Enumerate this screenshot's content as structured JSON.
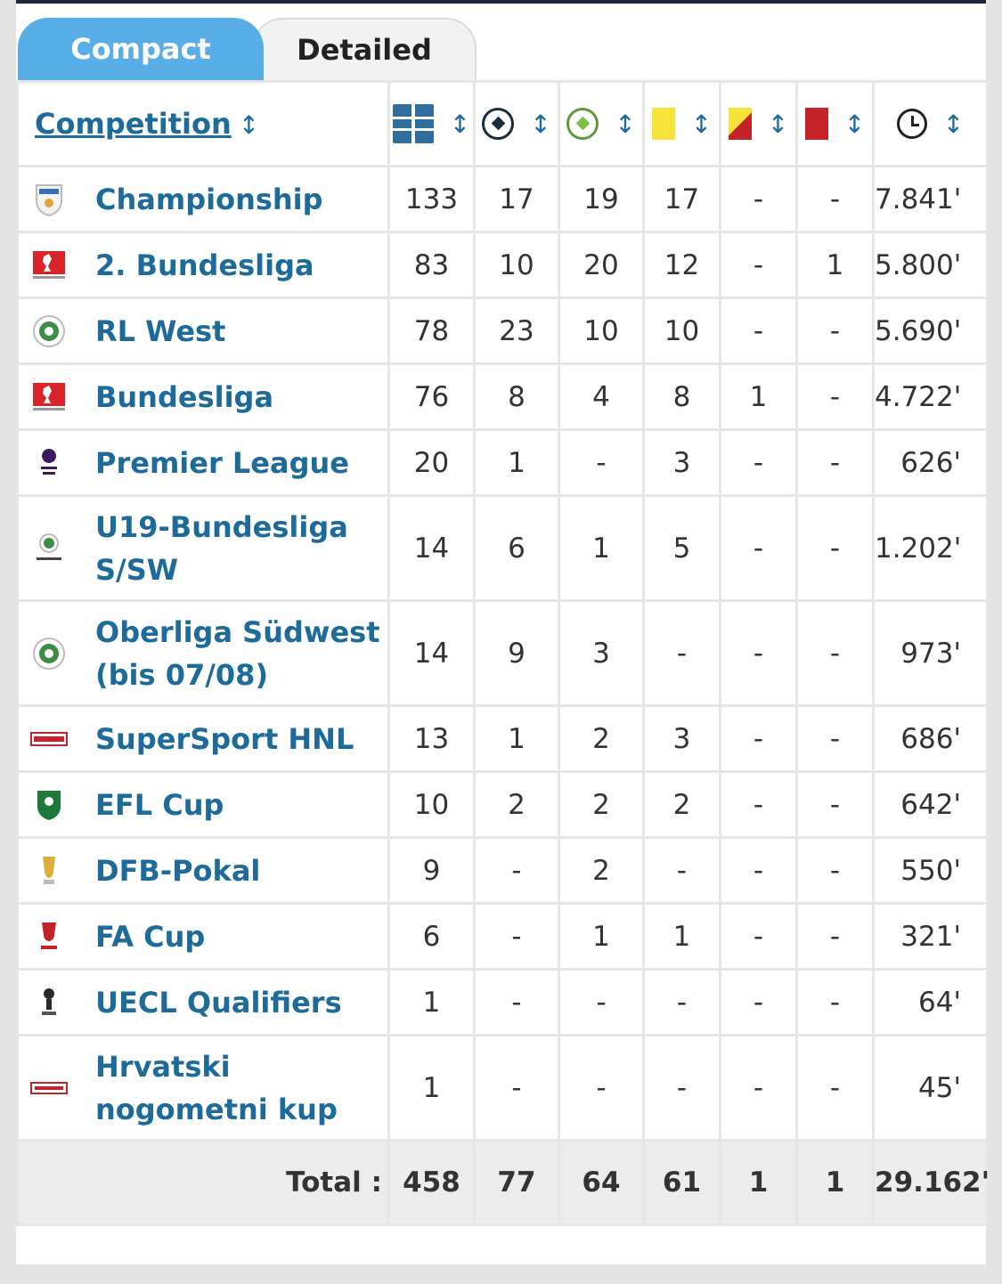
{
  "tabs": {
    "compact": "Compact",
    "detailed": "Detailed"
  },
  "header": {
    "competition": "Competition",
    "icons": [
      "appearances-icon",
      "goals-icon",
      "assists-icon",
      "yellow-card-icon",
      "yellow-red-card-icon",
      "red-card-icon",
      "minutes-clock-icon"
    ]
  },
  "rows": [
    {
      "name": "Championship",
      "logo": "championship-logo",
      "apps": "133",
      "goals": "17",
      "assists": "19",
      "yellow": "17",
      "yellowred": "-",
      "red": "-",
      "minutes": "7.841'"
    },
    {
      "name": "2. Bundesliga",
      "logo": "2-bundesliga-logo",
      "apps": "83",
      "goals": "10",
      "assists": "20",
      "yellow": "12",
      "yellowred": "-",
      "red": "1",
      "minutes": "5.800'"
    },
    {
      "name": "RL West",
      "logo": "rl-west-logo",
      "apps": "78",
      "goals": "23",
      "assists": "10",
      "yellow": "10",
      "yellowred": "-",
      "red": "-",
      "minutes": "5.690'"
    },
    {
      "name": "Bundesliga",
      "logo": "bundesliga-logo",
      "apps": "76",
      "goals": "8",
      "assists": "4",
      "yellow": "8",
      "yellowred": "1",
      "red": "-",
      "minutes": "4.722'"
    },
    {
      "name": "Premier League",
      "logo": "premier-league-logo",
      "apps": "20",
      "goals": "1",
      "assists": "-",
      "yellow": "3",
      "yellowred": "-",
      "red": "-",
      "minutes": "626'"
    },
    {
      "name": "U19-Bundesliga S/SW",
      "logo": "u19-bundesliga-logo",
      "apps": "14",
      "goals": "6",
      "assists": "1",
      "yellow": "5",
      "yellowred": "-",
      "red": "-",
      "minutes": "1.202'",
      "tall": true
    },
    {
      "name": "Oberliga Südwest (bis 07/08)",
      "logo": "oberliga-suedwest-logo",
      "apps": "14",
      "goals": "9",
      "assists": "3",
      "yellow": "-",
      "yellowred": "-",
      "red": "-",
      "minutes": "973'",
      "tall": true
    },
    {
      "name": "SuperSport HNL",
      "logo": "supersport-hnl-logo",
      "apps": "13",
      "goals": "1",
      "assists": "2",
      "yellow": "3",
      "yellowred": "-",
      "red": "-",
      "minutes": "686'"
    },
    {
      "name": "EFL Cup",
      "logo": "efl-cup-logo",
      "apps": "10",
      "goals": "2",
      "assists": "2",
      "yellow": "2",
      "yellowred": "-",
      "red": "-",
      "minutes": "642'"
    },
    {
      "name": "DFB-Pokal",
      "logo": "dfb-pokal-logo",
      "apps": "9",
      "goals": "-",
      "assists": "2",
      "yellow": "-",
      "yellowred": "-",
      "red": "-",
      "minutes": "550'"
    },
    {
      "name": "FA Cup",
      "logo": "fa-cup-logo",
      "apps": "6",
      "goals": "-",
      "assists": "1",
      "yellow": "1",
      "yellowred": "-",
      "red": "-",
      "minutes": "321'"
    },
    {
      "name": "UECL Qualifiers",
      "logo": "uecl-qualifiers-logo",
      "apps": "1",
      "goals": "-",
      "assists": "-",
      "yellow": "-",
      "yellowred": "-",
      "red": "-",
      "minutes": "64'"
    },
    {
      "name": "Hrvatski nogometni kup",
      "logo": "hrvatski-nogometni-kup-logo",
      "apps": "1",
      "goals": "-",
      "assists": "-",
      "yellow": "-",
      "yellowred": "-",
      "red": "-",
      "minutes": "45'",
      "tall": true
    }
  ],
  "total": {
    "label": "Total :",
    "apps": "458",
    "goals": "77",
    "assists": "64",
    "yellow": "61",
    "yellowred": "1",
    "red": "1",
    "minutes": "29.162'"
  },
  "colors": {
    "link": "#1d6b9a",
    "tab_active": "#5aaee8",
    "yellow_card": "#f6e43a",
    "red_card": "#c4232a"
  }
}
